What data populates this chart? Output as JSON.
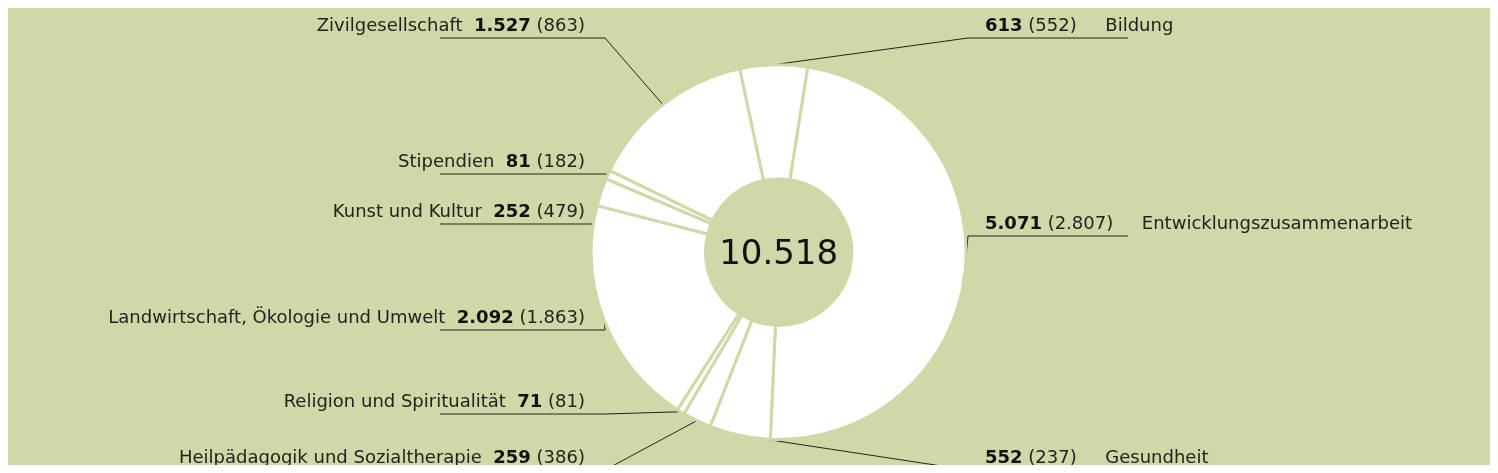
{
  "chart_data": {
    "type": "donut",
    "categories": [
      "Bildung",
      "Entwicklungszusammenarbeit",
      "Gesundheit",
      "Heilpädagogik und Sozialtherapie",
      "Religion und Spiritualität",
      "Landwirtschaft, Ökologie und Umwelt",
      "Kunst und Kultur",
      "Stipendien",
      "Zivilgesellschaft"
    ],
    "values": [
      613,
      5071,
      552,
      259,
      71,
      2092,
      252,
      81,
      1527
    ],
    "value_labels": [
      "613 (552)",
      "5.071 (2.807)",
      "552 (237)",
      "259 (386)",
      "71 (81)",
      "2.092 (1.863)",
      "252 (479)",
      "81 (182)",
      "1.527 (863)"
    ],
    "colors": [
      "#ffffff",
      "#ffffff",
      "#ffffff",
      "#ffffff",
      "#ffffff",
      "#ffffff",
      "#ffffff",
      "#ffffff",
      "#ffffff"
    ],
    "annotations": [
      "10.518"
    ],
    "legend": false
  }
}
